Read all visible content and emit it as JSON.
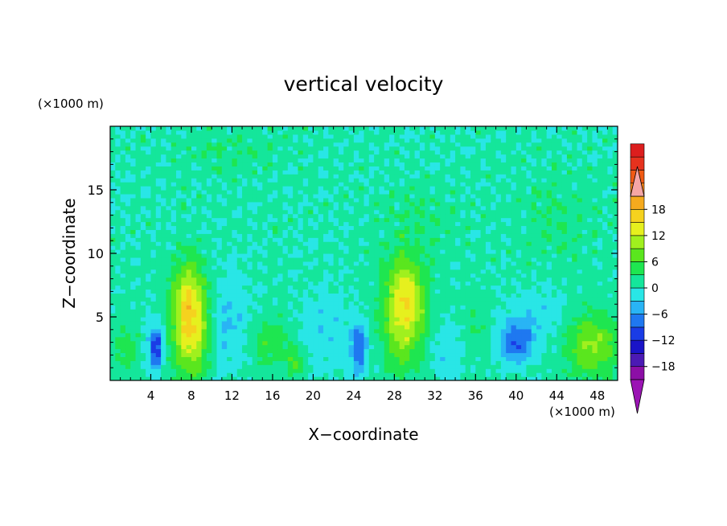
{
  "chart_data": {
    "type": "heatmap",
    "title": "vertical velocity",
    "xlabel": "X−coordinate",
    "ylabel": "Z−coordinate",
    "x_unit": "(×1000 m)",
    "y_unit": "(×1000 m)",
    "xlim": [
      0,
      50
    ],
    "ylim": [
      0,
      20
    ],
    "x_ticks": [
      4,
      8,
      12,
      16,
      20,
      24,
      28,
      32,
      36,
      40,
      44,
      48
    ],
    "y_ticks": [
      5,
      10,
      15
    ],
    "colorbar": {
      "min": -21,
      "max": 21,
      "step": 3,
      "tick_values": [
        18,
        12,
        6,
        0,
        -6,
        -12,
        -18
      ],
      "tick_labels": [
        "18",
        "12",
        "6",
        "0",
        "−6",
        "−12",
        "−18"
      ],
      "extend": "both",
      "colors": [
        "#8c0fa6",
        "#4b1ab4",
        "#1a14c8",
        "#1a3ce6",
        "#1f78f0",
        "#29b4f5",
        "#29e6e6",
        "#14e69b",
        "#1ee650",
        "#5ae61e",
        "#a0f01e",
        "#e6f01e",
        "#f5d21e",
        "#f5aa1e",
        "#f58214",
        "#f05a14",
        "#e6321e",
        "#dc1e1e"
      ],
      "over_color": "#f5a6a6",
      "under_color": "#9b14b4"
    },
    "background_level": 0.5,
    "features": [
      {
        "x": 8.0,
        "z": 4.2,
        "value": 14,
        "sx": 1.3,
        "sz": 2.8
      },
      {
        "x": 7.5,
        "z": 7.0,
        "value": 6,
        "sx": 1.0,
        "sz": 2.0
      },
      {
        "x": 29.0,
        "z": 5.0,
        "value": 12,
        "sx": 1.5,
        "sz": 2.7
      },
      {
        "x": 29.2,
        "z": 7.5,
        "value": 5,
        "sx": 1.2,
        "sz": 1.8
      },
      {
        "x": 47.5,
        "z": 2.8,
        "value": 9,
        "sx": 1.8,
        "sz": 1.8
      },
      {
        "x": 16.0,
        "z": 3.0,
        "value": 5,
        "sx": 1.5,
        "sz": 1.4
      },
      {
        "x": 18.3,
        "z": 1.5,
        "value": 5,
        "sx": 0.6,
        "sz": 0.9
      },
      {
        "x": 1.5,
        "z": 2.5,
        "value": 4,
        "sx": 0.8,
        "sz": 1.5
      },
      {
        "x": 4.5,
        "z": 2.6,
        "value": -12,
        "sx": 0.5,
        "sz": 1.3
      },
      {
        "x": 24.5,
        "z": 2.6,
        "value": -10,
        "sx": 0.5,
        "sz": 1.4
      },
      {
        "x": 40.0,
        "z": 3.0,
        "value": -9,
        "sx": 1.2,
        "sz": 1.1
      },
      {
        "x": 11.5,
        "z": 4.5,
        "value": -4,
        "sx": 1.5,
        "sz": 2.5
      },
      {
        "x": 21.0,
        "z": 4.0,
        "value": -3,
        "sx": 2.0,
        "sz": 2.0
      },
      {
        "x": 33.0,
        "z": 2.5,
        "value": -3,
        "sx": 1.5,
        "sz": 1.5
      },
      {
        "x": 42.0,
        "z": 5.0,
        "value": -3,
        "sx": 2.0,
        "sz": 1.5
      },
      {
        "x": 36.0,
        "z": 4.0,
        "value": 3,
        "sx": 1.0,
        "sz": 1.5
      },
      {
        "x": 12.0,
        "z": 18.0,
        "value": 2,
        "sx": 4.0,
        "sz": 1.2
      },
      {
        "x": 44.0,
        "z": 13.0,
        "value": 2,
        "sx": 3.0,
        "sz": 2.5
      },
      {
        "x": 30.0,
        "z": 12.5,
        "value": 2,
        "sx": 3.0,
        "sz": 2.0
      }
    ]
  }
}
